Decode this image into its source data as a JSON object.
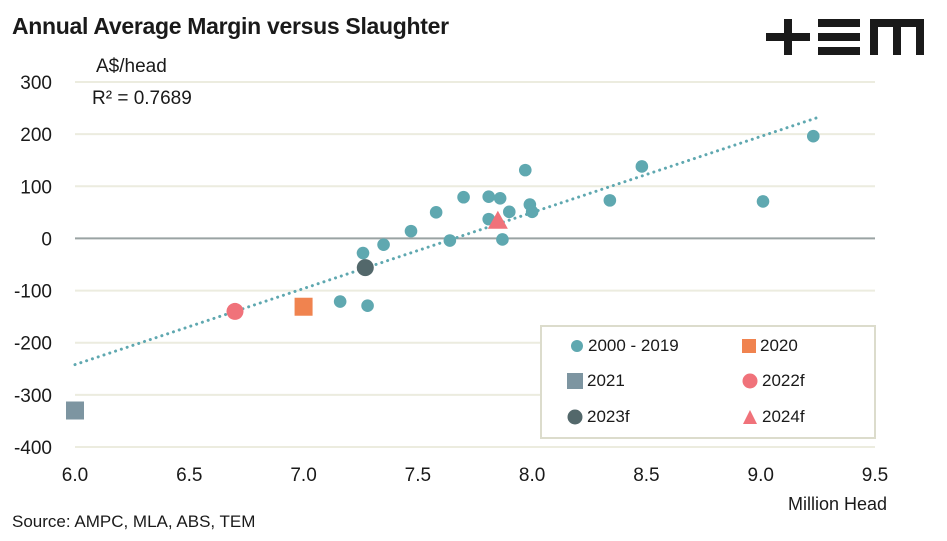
{
  "header": {
    "title": "Annual Average Margin versus Slaughter",
    "logo_text": "TEM"
  },
  "annotations": {
    "unit": "A$/head",
    "r_squared": "R² = 0.7689"
  },
  "footer": {
    "source": "Source: AMPC, MLA, ABS, TEM"
  },
  "colors": {
    "series_2000_2019": "#5fa8b0",
    "series_2020": "#f0834f",
    "series_2021": "#7d95a1",
    "series_2022f": "#f0727a",
    "series_2023f": "#53686b",
    "series_2024f": "#f0727a",
    "trendline": "#5fa8b0",
    "gridline": "#ececdf",
    "zero_line": "#9aa3a3",
    "legend_border": "#dcdccc"
  },
  "chart_data": {
    "type": "scatter",
    "title": "Annual Average Margin versus Slaughter",
    "xlabel": "Million Head",
    "ylabel": "A$/head",
    "xlim": [
      6.0,
      9.5
    ],
    "ylim": [
      -400,
      300
    ],
    "xticks": [
      "6.0",
      "6.5",
      "7.0",
      "7.5",
      "8.0",
      "8.5",
      "9.0",
      "9.5"
    ],
    "yticks": [
      "300",
      "200",
      "100",
      "0",
      "-100",
      "-200",
      "-300",
      "-400"
    ],
    "xtick_values": [
      6.0,
      6.5,
      7.0,
      7.5,
      8.0,
      8.5,
      9.0,
      9.5
    ],
    "ytick_values": [
      300,
      200,
      100,
      0,
      -100,
      -200,
      -300,
      -400
    ],
    "grid": "horizontal",
    "legend_position": "bottom-right",
    "trendline": {
      "type": "linear",
      "r_squared": 0.7689,
      "x_range": [
        6.0,
        9.25
      ],
      "y_at_start": -242,
      "y_at_end": 232,
      "style": "dotted"
    },
    "series": [
      {
        "name": "2000 - 2019",
        "marker": "circle",
        "points": [
          [
            7.26,
            -28
          ],
          [
            7.16,
            -121
          ],
          [
            7.28,
            -129
          ],
          [
            7.35,
            -12
          ],
          [
            7.47,
            14
          ],
          [
            7.58,
            50
          ],
          [
            7.64,
            -4
          ],
          [
            7.7,
            79
          ],
          [
            7.81,
            80
          ],
          [
            7.81,
            37
          ],
          [
            7.86,
            77
          ],
          [
            7.87,
            -2
          ],
          [
            7.9,
            51
          ],
          [
            7.97,
            131
          ],
          [
            7.99,
            65
          ],
          [
            8.0,
            51
          ],
          [
            8.34,
            73
          ],
          [
            8.48,
            138
          ],
          [
            9.01,
            71
          ],
          [
            9.23,
            196
          ]
        ]
      },
      {
        "name": "2020",
        "marker": "square",
        "points": [
          [
            7.0,
            -131
          ]
        ]
      },
      {
        "name": "2021",
        "marker": "square",
        "points": [
          [
            6.0,
            -330
          ]
        ]
      },
      {
        "name": "2022f",
        "marker": "circle",
        "points": [
          [
            6.7,
            -140
          ]
        ]
      },
      {
        "name": "2023f",
        "marker": "circle",
        "points": [
          [
            7.27,
            -56
          ]
        ]
      },
      {
        "name": "2024f",
        "marker": "triangle",
        "points": [
          [
            7.85,
            30
          ]
        ]
      }
    ]
  },
  "legend": {
    "items": [
      {
        "label": "2000 - 2019",
        "marker": "circle",
        "color": "#5fa8b0"
      },
      {
        "label": "2020",
        "marker": "square",
        "color": "#f0834f"
      },
      {
        "label": "2021",
        "marker": "square",
        "color": "#7d95a1"
      },
      {
        "label": "2022f",
        "marker": "circle",
        "color": "#f0727a"
      },
      {
        "label": "2023f",
        "marker": "circle",
        "color": "#53686b"
      },
      {
        "label": "2024f",
        "marker": "triangle",
        "color": "#f0727a"
      }
    ]
  }
}
